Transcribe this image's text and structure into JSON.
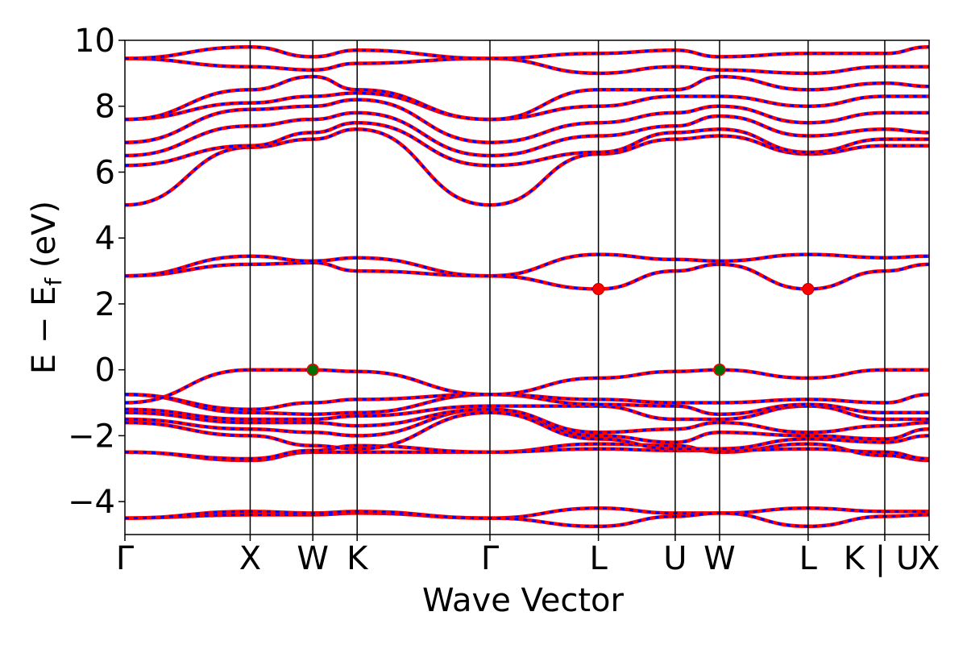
{
  "chart_data": {
    "type": "line",
    "title": "",
    "xlabel": "Wave Vector",
    "ylabel_main": "E − E",
    "ylabel_sub": "f",
    "ylabel_unit": " (eV)",
    "ylim": [
      -5,
      10
    ],
    "yticks": [
      -4,
      -2,
      0,
      2,
      4,
      6,
      8,
      10
    ],
    "ytick_labels": [
      "−4",
      "−2",
      "0",
      "2",
      "4",
      "6",
      "8",
      "10"
    ],
    "kpath": [
      {
        "label": "Γ",
        "x": 0.0
      },
      {
        "label": "X",
        "x": 1.0
      },
      {
        "label": "W",
        "x": 1.5
      },
      {
        "label": "K",
        "x": 1.854
      },
      {
        "label": "Γ",
        "x": 2.914
      },
      {
        "label": "L",
        "x": 3.78
      },
      {
        "label": "U",
        "x": 4.393
      },
      {
        "label": "W",
        "x": 4.747
      },
      {
        "label": "L",
        "x": 5.454
      },
      {
        "label": "K | U",
        "x": 6.066
      },
      {
        "label": "X",
        "x": 6.42
      }
    ],
    "xlim": [
      0,
      6.42
    ],
    "series_colors": {
      "spin_up": "#ff0000",
      "spin_down": "#0000ff"
    },
    "bands": [
      [
        -4.5,
        -4.4,
        -4.4,
        -4.35,
        -4.5,
        -4.2,
        -4.35,
        -4.35,
        -4.2,
        -4.3,
        -4.3
      ],
      [
        -4.5,
        -4.3,
        -4.35,
        -4.3,
        -4.5,
        -4.75,
        -4.45,
        -4.35,
        -4.75,
        -4.45,
        -4.4
      ],
      [
        -2.5,
        -2.75,
        -2.5,
        -2.5,
        -2.5,
        -2.25,
        -2.3,
        -2.5,
        -2.25,
        -2.6,
        -2.75
      ],
      [
        -2.5,
        -2.7,
        -2.45,
        -2.3,
        -2.5,
        -2.4,
        -2.45,
        -2.45,
        -2.4,
        -2.5,
        -2.7
      ],
      [
        -1.6,
        -2.0,
        -2.3,
        -2.4,
        -1.3,
        -2.1,
        -2.4,
        -2.4,
        -2.1,
        -2.2,
        -2.0
      ],
      [
        -1.5,
        -1.8,
        -1.9,
        -2.0,
        -1.2,
        -2.0,
        -2.2,
        -1.9,
        -2.0,
        -2.1,
        -1.8
      ],
      [
        -1.3,
        -1.6,
        -1.6,
        -1.7,
        -1.2,
        -1.9,
        -1.8,
        -1.6,
        -1.9,
        -1.7,
        -1.6
      ],
      [
        -1.2,
        -1.5,
        -1.5,
        -1.4,
        -1.1,
        -1.1,
        -1.5,
        -1.5,
        -1.1,
        -1.5,
        -1.5
      ],
      [
        -0.75,
        -1.3,
        -1.35,
        -1.3,
        -0.75,
        -1.05,
        -1.1,
        -1.35,
        -1.05,
        -1.3,
        -1.3
      ],
      [
        -0.75,
        -1.2,
        -1.0,
        -0.9,
        -0.75,
        -0.9,
        -1.0,
        -1.0,
        -0.9,
        -1.0,
        -0.75
      ],
      [
        -1.0,
        0.0,
        0.0,
        -0.05,
        -0.75,
        -0.25,
        -0.05,
        0.0,
        -0.25,
        0.0,
        0.0
      ],
      [
        2.85,
        3.2,
        3.25,
        3.0,
        2.85,
        2.45,
        3.0,
        3.2,
        2.45,
        3.0,
        3.2
      ],
      [
        2.85,
        3.45,
        3.3,
        3.4,
        2.85,
        3.5,
        3.35,
        3.3,
        3.5,
        3.4,
        3.45
      ],
      [
        5.0,
        6.75,
        7.0,
        7.3,
        5.0,
        6.55,
        7.0,
        7.1,
        6.55,
        6.8,
        6.8
      ],
      [
        6.2,
        6.8,
        7.2,
        7.5,
        6.2,
        6.6,
        7.2,
        7.3,
        6.6,
        7.0,
        7.0
      ],
      [
        6.5,
        7.4,
        7.6,
        7.8,
        6.5,
        7.1,
        7.4,
        7.7,
        7.1,
        7.3,
        7.2
      ],
      [
        6.9,
        7.9,
        8.0,
        8.2,
        6.9,
        7.5,
        7.8,
        8.0,
        7.5,
        7.8,
        7.8
      ],
      [
        7.6,
        8.1,
        8.3,
        8.4,
        7.6,
        8.0,
        8.3,
        8.3,
        8.0,
        8.3,
        8.3
      ],
      [
        7.6,
        8.5,
        8.9,
        8.5,
        7.6,
        8.5,
        8.5,
        8.9,
        8.5,
        8.7,
        8.6
      ],
      [
        9.45,
        9.2,
        9.1,
        9.3,
        9.45,
        9.0,
        9.2,
        9.1,
        9.0,
        9.2,
        9.2
      ],
      [
        9.45,
        9.8,
        9.5,
        9.7,
        9.45,
        9.6,
        9.7,
        9.5,
        9.6,
        9.6,
        9.8
      ]
    ],
    "vbm_points": [
      {
        "x": 1.5,
        "y": 0.0
      },
      {
        "x": 4.747,
        "y": 0.0
      }
    ],
    "cbm_points": [
      {
        "x": 3.78,
        "y": 2.45
      },
      {
        "x": 5.454,
        "y": 2.45
      }
    ],
    "vbm_color": "#007000",
    "cbm_color": "#ff0000"
  }
}
